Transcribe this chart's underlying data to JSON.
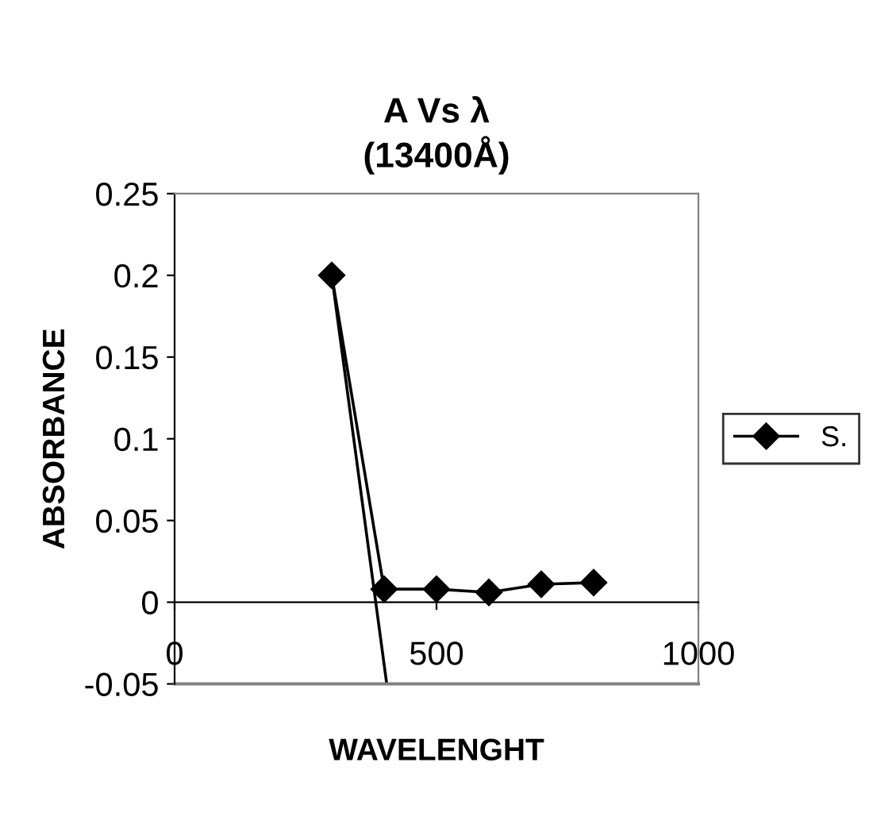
{
  "chart_data": {
    "type": "line",
    "title": "A Vs λ\n(13400Å)",
    "xlabel": "WAVELENGHT",
    "ylabel": "ABSORBANCE",
    "x": [
      300,
      400,
      500,
      600,
      700,
      800
    ],
    "series": [
      {
        "name": "S.",
        "color": "#000000",
        "values": [
          0.2,
          0.008,
          0.008,
          0.006,
          0.011,
          0.012
        ],
        "marker": "diamond"
      },
      {
        "type": "line",
        "x": [
          300,
          405
        ],
        "color": "#000000",
        "values": [
          0.2,
          -0.05
        ],
        "marker": "none"
      }
    ],
    "xlim": [
      0,
      1000
    ],
    "xticks": [
      0,
      500,
      1000
    ],
    "ylim": [
      -0.05,
      0.25
    ],
    "yticks": [
      -0.05,
      0,
      0.05,
      0.1,
      0.15,
      0.2,
      0.25
    ],
    "legend": "right"
  }
}
